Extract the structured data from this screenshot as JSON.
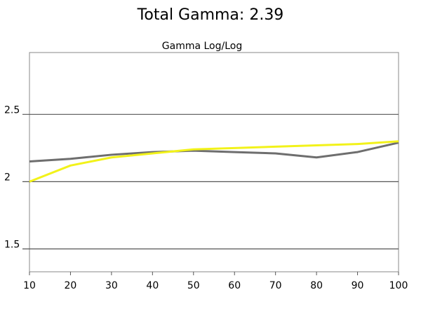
{
  "chart_data": {
    "type": "line",
    "title": "Total Gamma: 2.39",
    "subtitle": "Gamma Log/Log",
    "x": [
      10,
      20,
      30,
      40,
      50,
      60,
      70,
      80,
      90,
      100
    ],
    "series": [
      {
        "color": "#6e6e6e",
        "values": [
          2.15,
          2.17,
          2.2,
          2.22,
          2.23,
          2.22,
          2.21,
          2.18,
          2.22,
          2.29
        ]
      },
      {
        "color": "#f2f21a",
        "values": [
          2.0,
          2.12,
          2.18,
          2.21,
          2.24,
          2.25,
          2.26,
          2.27,
          2.28,
          2.3
        ]
      }
    ],
    "xlim": [
      10,
      100
    ],
    "xticks": [
      10,
      20,
      30,
      40,
      50,
      60,
      70,
      80,
      90,
      100
    ],
    "ylim": [
      1.33,
      2.96
    ],
    "yticks": [
      1.5,
      2,
      2.5
    ],
    "grid": true
  }
}
